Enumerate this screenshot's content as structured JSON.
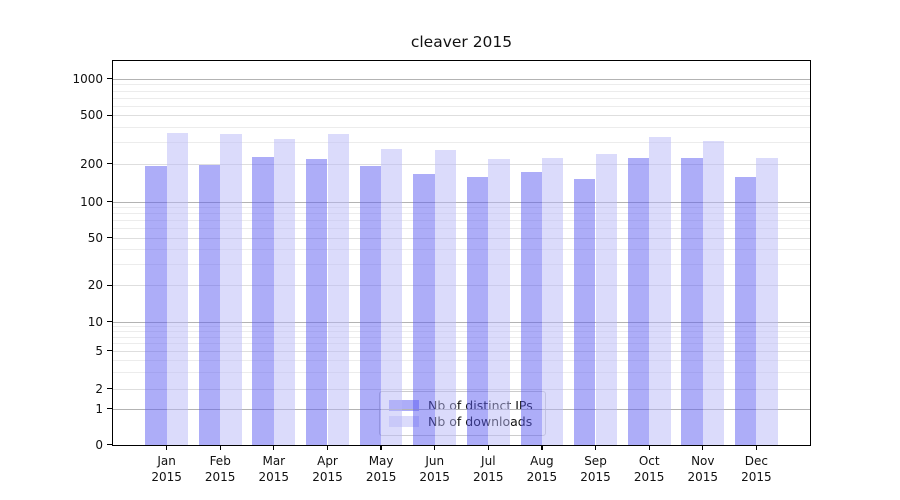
{
  "chart_data": {
    "type": "bar",
    "title": "cleaver 2015",
    "months": [
      "Jan",
      "Feb",
      "Mar",
      "Apr",
      "May",
      "Jun",
      "Jul",
      "Aug",
      "Sep",
      "Oct",
      "Nov",
      "Dec"
    ],
    "year_label": "2015",
    "series": [
      {
        "name": "Nb of distinct IPs",
        "color": "rgba(92,92,242,0.5)",
        "values": [
          193,
          197,
          228,
          220,
          192,
          167,
          157,
          172,
          152,
          222,
          224,
          156
        ]
      },
      {
        "name": "Nb of downloads",
        "color": "rgba(184,184,247,0.5)",
        "values": [
          356,
          349,
          321,
          353,
          266,
          262,
          219,
          224,
          239,
          330,
          307,
          221
        ]
      }
    ],
    "y_axis": {
      "scale": "symlog",
      "tick_values": [
        0,
        1,
        2,
        5,
        10,
        20,
        50,
        100,
        200,
        500,
        1000
      ],
      "tick_labels": [
        "0",
        "1",
        "2",
        "5",
        "10",
        "20",
        "50",
        "100",
        "200",
        "500",
        "1000"
      ],
      "range_top": 1400
    },
    "grid": "both",
    "legend_position": "lower center",
    "colors": {
      "grid_pow10": "#b3b3b3",
      "grid_mid": "#dedede",
      "grid_minor": "#ececec",
      "spine": "#000000",
      "background": "#ffffff"
    }
  }
}
